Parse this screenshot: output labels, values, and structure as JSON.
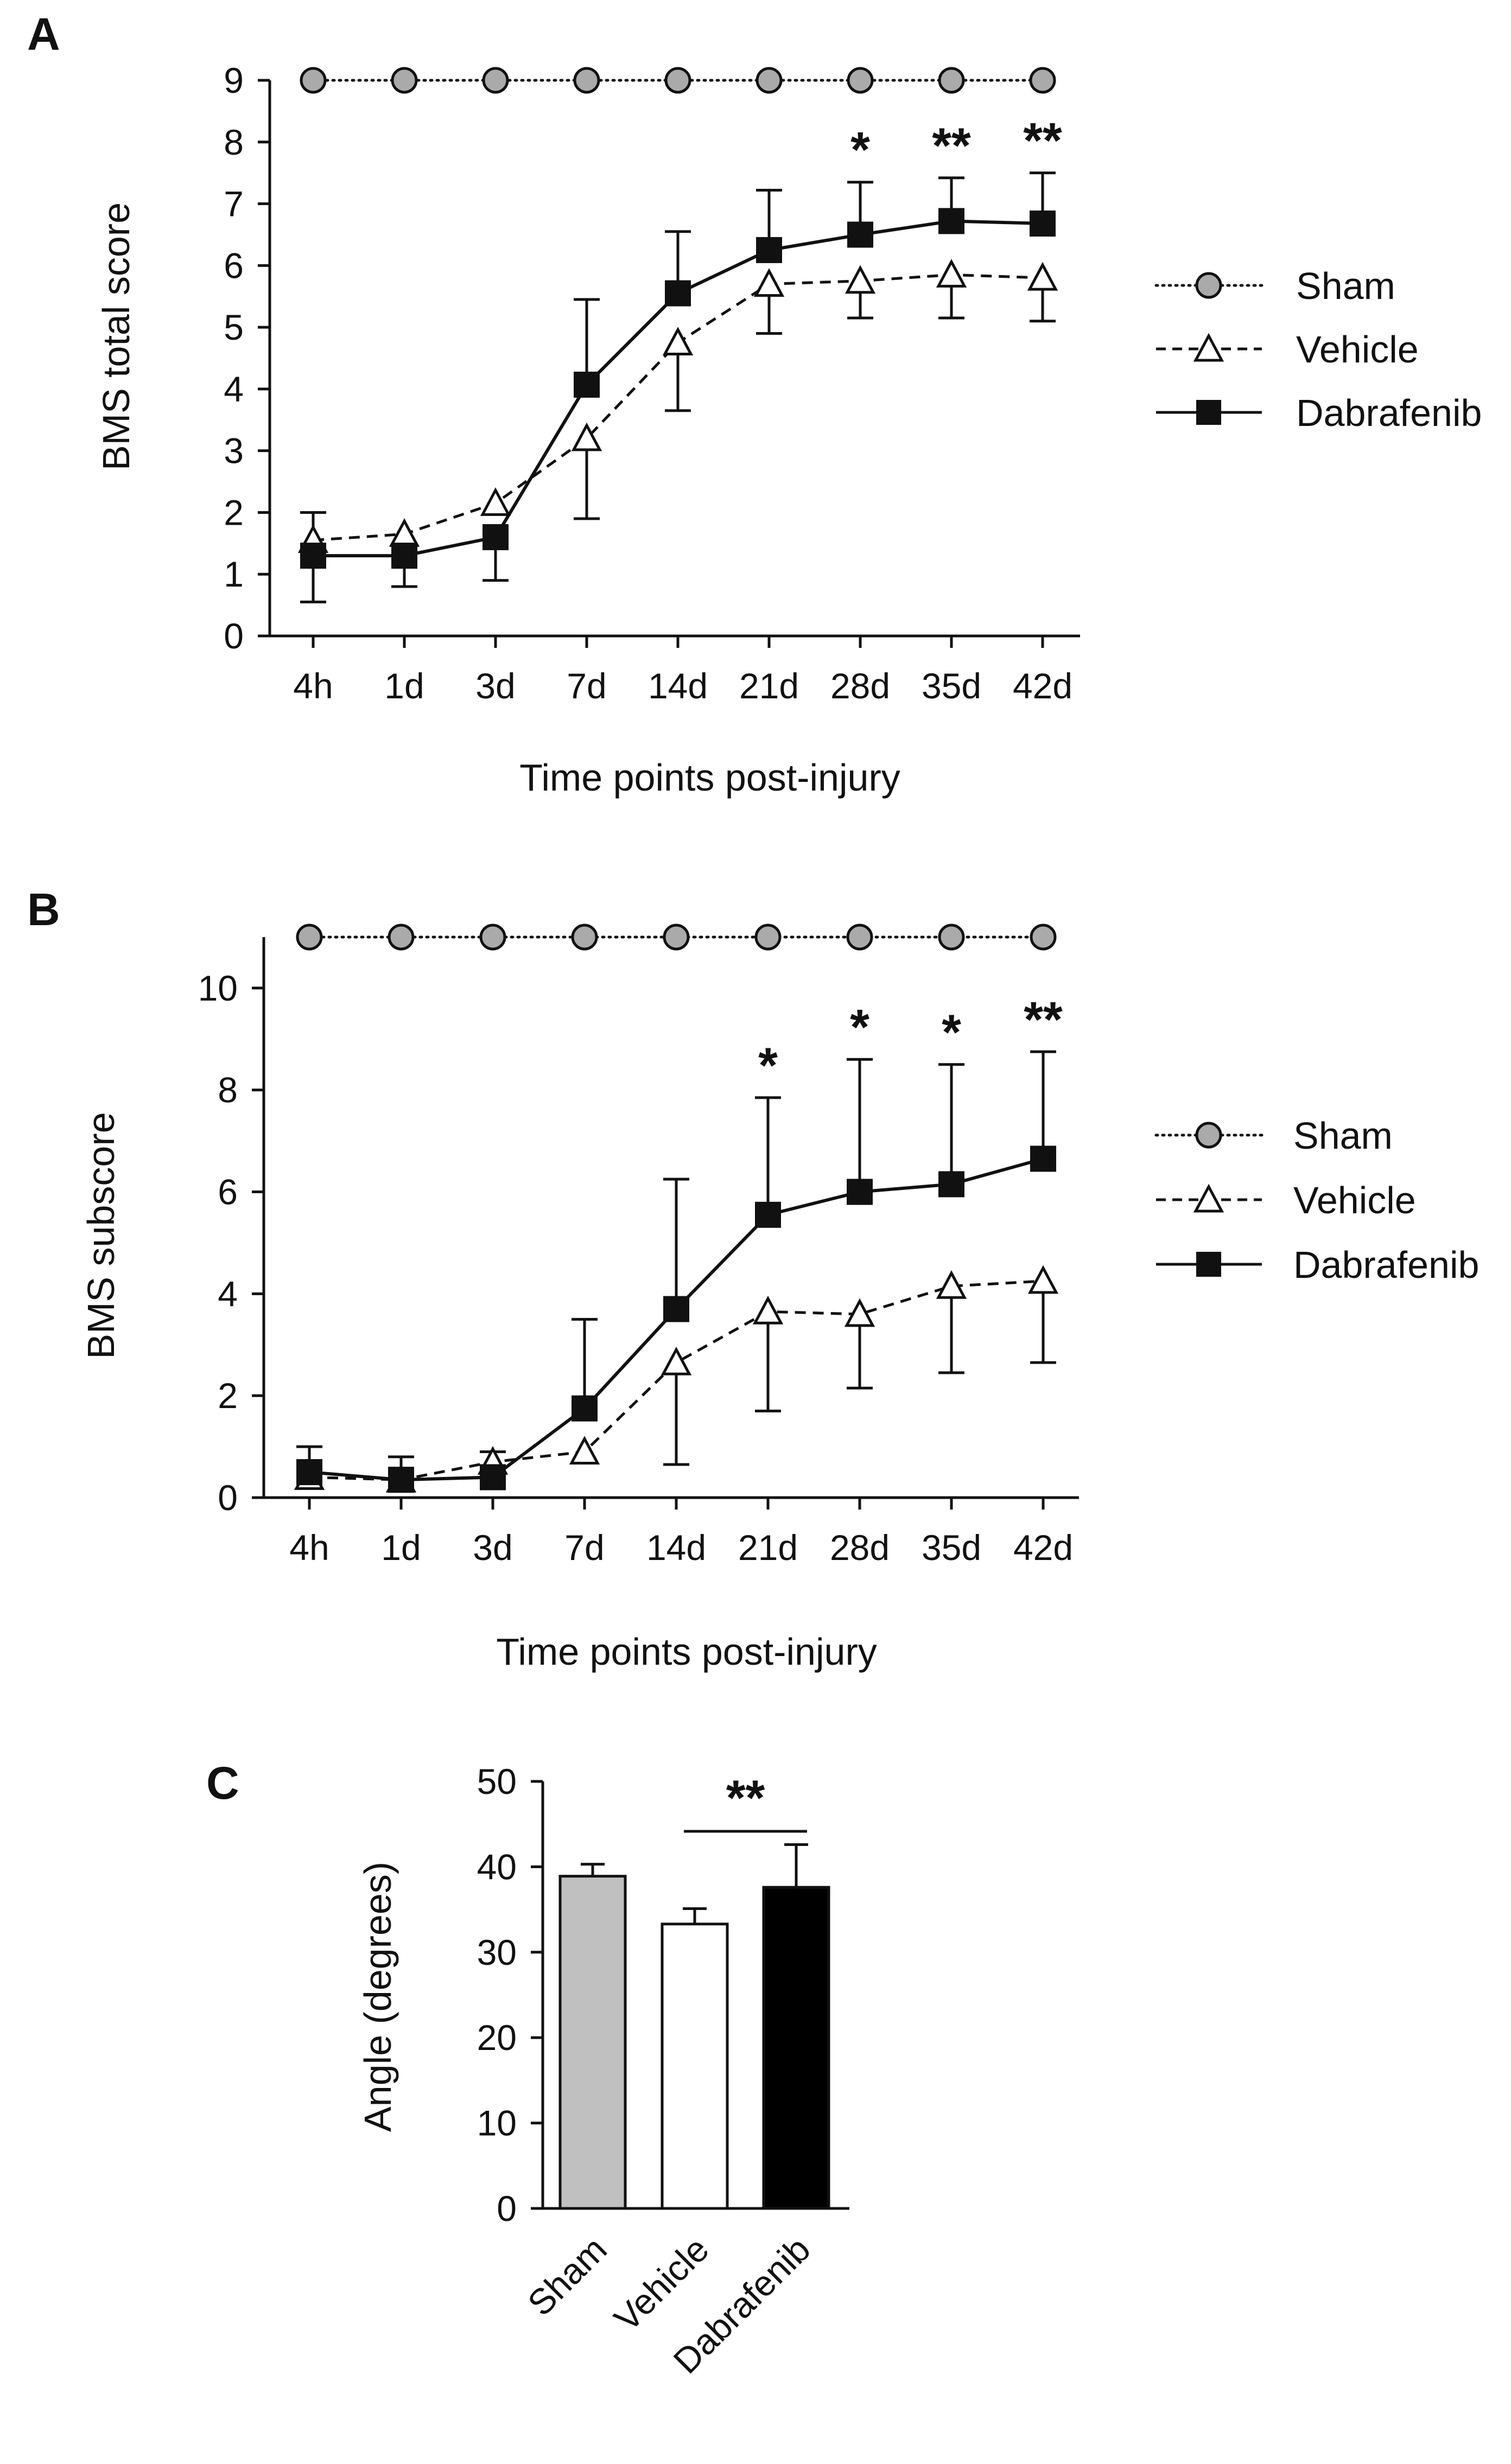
{
  "chart_data": [
    {
      "panel": "A",
      "type": "line",
      "ylabel": "BMS total score",
      "xlabel": "Time points post-injury",
      "categories": [
        "4h",
        "1d",
        "3d",
        "7d",
        "14d",
        "21d",
        "28d",
        "35d",
        "42d"
      ],
      "ylim": [
        0,
        9
      ],
      "yticks": [
        0,
        1,
        2,
        3,
        4,
        5,
        6,
        7,
        8,
        9
      ],
      "series": [
        {
          "name": "Sham",
          "style": "dotted",
          "marker": "circle",
          "values": [
            9,
            9,
            9,
            9,
            9,
            9,
            9,
            9,
            9
          ]
        },
        {
          "name": "Vehicle",
          "style": "dashed",
          "marker": "triangle",
          "values": [
            1.55,
            1.65,
            2.15,
            3.2,
            4.75,
            5.7,
            5.75,
            5.85,
            5.8
          ],
          "error_down": [
            0,
            0,
            0,
            1.3,
            1.1,
            0.8,
            0.6,
            0.7,
            0.7
          ]
        },
        {
          "name": "Dabrafenib",
          "style": "solid",
          "marker": "square",
          "values": [
            1.3,
            1.3,
            1.6,
            4.07,
            5.55,
            6.25,
            6.5,
            6.72,
            6.68
          ],
          "error_up": [
            0.7,
            0.0,
            0.0,
            1.38,
            1.0,
            0.97,
            0.85,
            0.7,
            0.82
          ],
          "error_down": [
            0.75,
            0.5,
            0.7,
            0,
            0,
            0,
            0,
            0,
            0
          ]
        }
      ],
      "significance": [
        {
          "category": "28d",
          "label": "*"
        },
        {
          "category": "35d",
          "label": "**"
        },
        {
          "category": "42d",
          "label": "**"
        }
      ]
    },
    {
      "panel": "B",
      "type": "line",
      "ylabel": "BMS subscore",
      "xlabel": "Time points post-injury",
      "categories": [
        "4h",
        "1d",
        "3d",
        "7d",
        "14d",
        "21d",
        "28d",
        "35d",
        "42d"
      ],
      "ylim": [
        0,
        11
      ],
      "yticks": [
        0,
        2,
        4,
        6,
        8,
        10
      ],
      "series": [
        {
          "name": "Sham",
          "style": "dotted",
          "marker": "circle",
          "values": [
            11,
            11,
            11,
            11,
            11,
            11,
            11,
            11,
            11
          ]
        },
        {
          "name": "Vehicle",
          "style": "dashed",
          "marker": "triangle",
          "values": [
            0.4,
            0.35,
            0.7,
            0.9,
            2.65,
            3.65,
            3.6,
            4.15,
            4.25
          ],
          "error_down": [
            0,
            0,
            0,
            0,
            2.0,
            1.95,
            1.45,
            1.7,
            1.6
          ]
        },
        {
          "name": "Dabrafenib",
          "style": "solid",
          "marker": "square",
          "values": [
            0.5,
            0.35,
            0.4,
            1.75,
            3.7,
            5.55,
            6.0,
            6.15,
            6.65
          ],
          "error_up": [
            0.5,
            0.45,
            0.5,
            1.75,
            2.55,
            2.3,
            2.6,
            2.35,
            2.1
          ],
          "error_down": [
            0,
            0,
            0,
            0,
            0,
            0,
            0,
            0,
            0
          ]
        }
      ],
      "significance": [
        {
          "category": "21d",
          "label": "*"
        },
        {
          "category": "28d",
          "label": "*"
        },
        {
          "category": "35d",
          "label": "*"
        },
        {
          "category": "42d",
          "label": "**"
        }
      ]
    },
    {
      "panel": "C",
      "type": "bar",
      "ylabel": "Angle (degrees)",
      "categories": [
        "Sham",
        "Vehicle",
        "Dabrafenib"
      ],
      "values": [
        38.9,
        33.3,
        37.6
      ],
      "error_up": [
        1.4,
        1.8,
        5.0
      ],
      "colors": [
        "#c0c0c0",
        "#ffffff",
        "#000000"
      ],
      "ylim": [
        0,
        50
      ],
      "yticks": [
        0,
        10,
        20,
        30,
        40,
        50
      ],
      "significance": [
        {
          "from": "Vehicle",
          "to": "Dabrafenib",
          "label": "**"
        }
      ]
    }
  ]
}
